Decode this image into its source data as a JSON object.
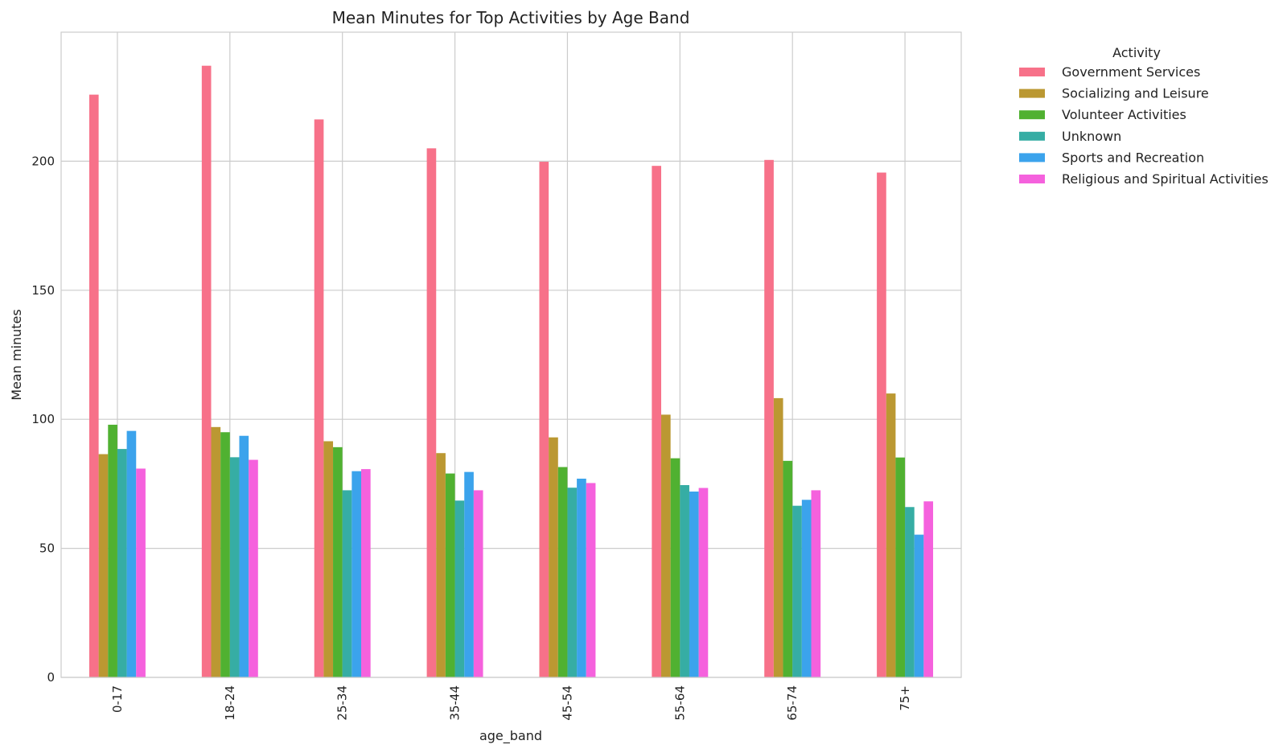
{
  "chart_data": {
    "type": "bar",
    "title": "Mean Minutes for Top Activities by Age Band",
    "xlabel": "age_band",
    "ylabel": "Mean minutes",
    "ylim": [
      0,
      250
    ],
    "yticks": [
      0,
      50,
      100,
      150,
      200
    ],
    "grid": true,
    "legend_title": "Activity",
    "legend_position": "outside-right",
    "categories": [
      "0-17",
      "18-24",
      "25-34",
      "35-44",
      "45-54",
      "55-64",
      "65-74",
      "75+"
    ],
    "series": [
      {
        "name": "Government Services",
        "color": "#f77189",
        "values": [
          225.8,
          237.0,
          216.2,
          205.0,
          199.8,
          198.2,
          200.5,
          195.6
        ]
      },
      {
        "name": "Socializing and Leisure",
        "color": "#bb9832",
        "values": [
          86.5,
          97.0,
          91.5,
          86.9,
          93.0,
          101.8,
          108.2,
          110.0
        ]
      },
      {
        "name": "Volunteer Activities",
        "color": "#50b131",
        "values": [
          97.9,
          95.0,
          89.2,
          79.0,
          81.5,
          84.9,
          83.9,
          85.2
        ]
      },
      {
        "name": "Unknown",
        "color": "#36ada4",
        "values": [
          88.5,
          85.3,
          72.5,
          68.5,
          73.5,
          74.5,
          66.5,
          66.0
        ]
      },
      {
        "name": "Sports and Recreation",
        "color": "#3ba3ec",
        "values": [
          95.5,
          93.6,
          79.9,
          79.6,
          77.0,
          72.0,
          68.8,
          55.3
        ]
      },
      {
        "name": "Religious and Spiritual Activities",
        "color": "#f561dd",
        "values": [
          80.9,
          84.3,
          80.7,
          72.5,
          75.3,
          73.4,
          72.5,
          68.2
        ]
      }
    ]
  }
}
